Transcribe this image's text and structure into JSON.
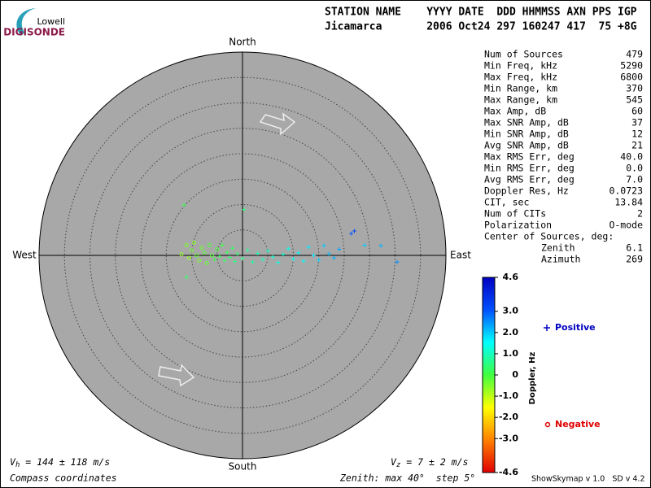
{
  "header": {
    "logo_top": "Lowell",
    "logo_bottom": "DIGISONDE",
    "line1": "STATION NAME    YYYY DATE  DDD HHMMSS AXN PPS IGP",
    "line2": "Jicamarca       2006 Oct24 297 160247 417  75 +8G"
  },
  "stats": {
    "rows": [
      [
        "Num of Sources",
        "479"
      ],
      [
        "Min Freq, kHz",
        "5290"
      ],
      [
        "Max Freq, kHz",
        "6800"
      ],
      [
        "Min Range, km",
        "370"
      ],
      [
        "Max Range, km",
        "545"
      ],
      [
        "Max Amp, dB",
        "60"
      ],
      [
        "Max SNR Amp, dB",
        "37"
      ],
      [
        "Min SNR Amp, dB",
        "12"
      ],
      [
        "Avg SNR Amp, dB",
        "21"
      ],
      [
        "Max RMS Err, deg",
        "40.0"
      ],
      [
        "Min RMS Err, deg",
        "0.0"
      ],
      [
        "Avg RMS Err, deg",
        "7.0"
      ],
      [
        "Doppler Res, Hz",
        "0.0723"
      ],
      [
        "CIT, sec",
        "13.84"
      ],
      [
        "Num of CITs",
        "2"
      ],
      [
        "Polarization",
        "O-mode"
      ]
    ],
    "center_title": "Center of Sources, deg:",
    "center_rows": [
      [
        "Zenith",
        "6.1"
      ],
      [
        "Azimuth",
        "269"
      ]
    ]
  },
  "chart_data": {
    "type": "skymap",
    "compass": {
      "north": "North",
      "south": "South",
      "west": "West",
      "east": "East"
    },
    "rlim": [
      0,
      40
    ],
    "rings": [
      5,
      10,
      15,
      20,
      25,
      30,
      35,
      40
    ],
    "points": {
      "east": [
        -12,
        -11,
        -10.5,
        -10,
        -9.5,
        -9,
        -8.5,
        -8,
        -7.5,
        -7,
        -6.5,
        -6,
        -5.5,
        -5,
        -4.5,
        -4,
        -3.5,
        -3,
        -2.5,
        -2,
        -1.5,
        -1,
        0,
        1,
        2,
        3,
        4,
        5,
        6,
        7,
        8,
        9,
        10,
        11,
        12,
        13,
        14,
        15,
        16,
        17,
        18,
        19,
        21.4,
        27.2,
        30.4,
        -11.5,
        0.3,
        -11,
        22,
        24
      ],
      "north": [
        0.2,
        2,
        -0.5,
        1,
        2.5,
        0,
        -1,
        1.5,
        0.5,
        -1.5,
        2,
        0,
        -0.8,
        1.2,
        -0.2,
        2,
        -1,
        0.6,
        -0.4,
        1.4,
        -1.2,
        0.3,
        -0.6,
        1,
        -1.3,
        0.4,
        -0.8,
        0.9,
        -0.3,
        -1.4,
        0.2,
        1.3,
        -0.7,
        0.5,
        -1.1,
        1.6,
        0,
        -0.9,
        1.9,
        0.3,
        -0.5,
        1.2,
        4.3,
        1.9,
        -1.3,
        9.9,
        9,
        -4.3,
        4.8,
        2
      ],
      "doppler": [
        -0.6,
        -0.5,
        -0.7,
        -0.4,
        -0.6,
        -0.3,
        -0.5,
        -0.4,
        -0.2,
        -0.3,
        -0.1,
        -0.2,
        0.1,
        -0.1,
        0.2,
        0.1,
        0.3,
        0.2,
        0.4,
        0.3,
        0.5,
        0.4,
        0.6,
        0.7,
        0.8,
        0.9,
        1.0,
        1.1,
        1.2,
        1.3,
        1.2,
        1.4,
        1.5,
        1.6,
        1.5,
        1.7,
        1.8,
        1.9,
        2.0,
        2.1,
        2.2,
        2.3,
        3.0,
        2.2,
        2.5,
        0.2,
        0.5,
        0.3,
        3.2,
        2.0
      ]
    },
    "colorbar": {
      "label": "Doppler, Hz",
      "zlim": [
        -4.6,
        4.6
      ],
      "ticks": [
        4.6,
        {
          "value": 3,
          "label": "3.0"
        },
        {
          "value": 2,
          "label": "2.0"
        },
        {
          "value": 1,
          "label": "1.0"
        },
        0,
        {
          "value": -1,
          "label": "-1.0"
        },
        {
          "value": -2,
          "label": "-2.0"
        },
        {
          "value": -3,
          "label": "-3.0"
        },
        -4.6
      ],
      "colors": [
        "#e00000",
        "#ff8000",
        "#ffff00",
        "#40ff40",
        "#00ffff",
        "#0050ff",
        "#0000c0"
      ]
    },
    "legend": {
      "positive": "Positive",
      "negative": "Negative",
      "positive_color": "#0000c0",
      "negative_color": "#e00000"
    }
  },
  "footer": {
    "vh": {
      "symbol": "V",
      "sub": "h",
      "text": " = 144 ± 118 m/s"
    },
    "vz": {
      "symbol": "V",
      "sub": "z",
      "text": " = 7 ± 2 m/s"
    },
    "coords": "Compass coordinates",
    "zenith": "Zenith: max 40°  step 5°",
    "version": "ShowSkymap v 1.0   SD v 4.2"
  }
}
